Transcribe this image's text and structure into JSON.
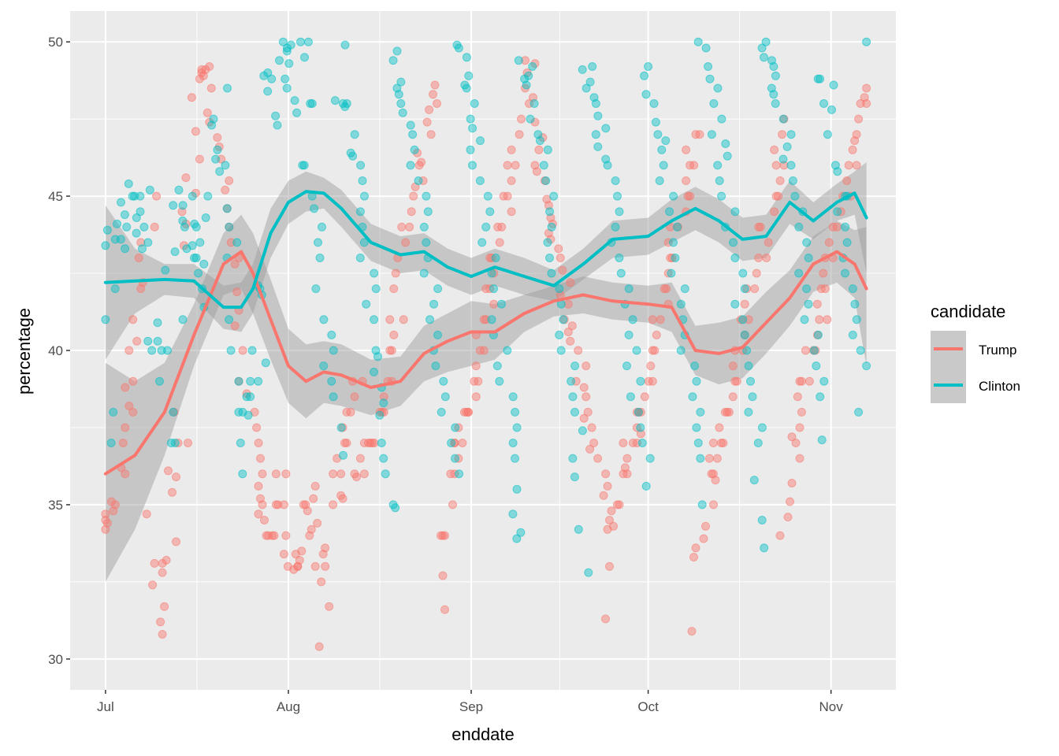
{
  "chart_data": {
    "type": "scatter",
    "xlabel": "enddate",
    "ylabel": "percentage",
    "x_ticks": [
      "Jul",
      "Aug",
      "Sep",
      "Oct",
      "Nov"
    ],
    "x_tick_dates": [
      "2016-07-01",
      "2016-08-01",
      "2016-09-01",
      "2016-10-01",
      "2016-11-01"
    ],
    "xlim": [
      "2016-06-25",
      "2016-11-12"
    ],
    "y_ticks": [
      30,
      35,
      40,
      45,
      50
    ],
    "ylim": [
      29,
      51
    ],
    "grid": true,
    "legend": {
      "title": "candidate",
      "position": "right"
    },
    "series": [
      {
        "name": "Trump",
        "color": "#F8766D",
        "smooth_x": [
          "2016-07-01",
          "2016-07-06",
          "2016-07-11",
          "2016-07-16",
          "2016-07-21",
          "2016-07-24",
          "2016-07-26",
          "2016-07-29",
          "2016-08-01",
          "2016-08-04",
          "2016-08-07",
          "2016-08-10",
          "2016-08-15",
          "2016-08-20",
          "2016-08-24",
          "2016-08-28",
          "2016-09-01",
          "2016-09-05",
          "2016-09-10",
          "2016-09-15",
          "2016-09-20",
          "2016-09-25",
          "2016-10-01",
          "2016-10-05",
          "2016-10-09",
          "2016-10-13",
          "2016-10-17",
          "2016-10-21",
          "2016-10-25",
          "2016-10-29",
          "2016-11-02",
          "2016-11-05",
          "2016-11-07"
        ],
        "smooth_y": [
          36.0,
          36.6,
          38.0,
          40.5,
          42.8,
          43.2,
          42.5,
          41.0,
          39.5,
          39.0,
          39.3,
          39.2,
          38.8,
          39.0,
          39.9,
          40.3,
          40.6,
          40.6,
          41.2,
          41.6,
          41.8,
          41.6,
          41.5,
          41.4,
          40.0,
          39.9,
          40.1,
          40.9,
          41.7,
          42.8,
          43.2,
          42.8,
          42.0
        ],
        "band_low": [
          32.5,
          34.2,
          36.6,
          39.5,
          41.8,
          42.0,
          41.2,
          39.7,
          38.3,
          37.8,
          38.3,
          38.2,
          37.9,
          38.2,
          39.0,
          39.3,
          39.5,
          39.7,
          40.6,
          41.1,
          41.2,
          41.0,
          40.9,
          40.6,
          39.2,
          38.9,
          39.1,
          39.9,
          40.8,
          41.9,
          42.2,
          41.7,
          39.5
        ],
        "band_high": [
          39.6,
          39.0,
          39.6,
          41.5,
          43.8,
          44.4,
          43.8,
          42.3,
          40.7,
          40.2,
          40.3,
          40.2,
          39.7,
          39.8,
          40.8,
          41.2,
          41.6,
          41.5,
          41.8,
          42.1,
          42.4,
          42.2,
          42.1,
          42.2,
          40.8,
          40.9,
          41.1,
          41.9,
          42.6,
          43.7,
          44.2,
          43.9,
          44.0
        ],
        "points_y": [
          34.2,
          34.4,
          34.5,
          34.7,
          34.8,
          35.0,
          35.1,
          36.0,
          36.2,
          37.0,
          37.5,
          38.0,
          38.2,
          38.8,
          39.0,
          40.0,
          40.3,
          41.0,
          42.0,
          42.2,
          43.0,
          43.5,
          44.0,
          45.0,
          34.7,
          33.1,
          32.8,
          32.4,
          31.2,
          30.8,
          31.7,
          33.2,
          33.1,
          33.8,
          35.4,
          36.1,
          35.9,
          37.0,
          38.0,
          37.0,
          43.4,
          44.1,
          44.5,
          45.1,
          45.6,
          46.2,
          47.1,
          48.2,
          48.8,
          49.1,
          49.2,
          49.1,
          49.0,
          48.9,
          48.5,
          47.7,
          47.4,
          46.9,
          46.6,
          46.2,
          45.5,
          45.2,
          44.6,
          44.0,
          43.5,
          43.0,
          42.8,
          41.9,
          41.3,
          40.8,
          40.0,
          39.0,
          38.6,
          38.0,
          37.5,
          37.0,
          36.5,
          36.0,
          35.6,
          35.2,
          35.0,
          34.7,
          34.0,
          34.0,
          34.5,
          34.0,
          34.0,
          35.0,
          35.0,
          36.0,
          36.0,
          35.0,
          34.0,
          33.0,
          33.4,
          33.0,
          32.9,
          33.5,
          33.0,
          33.2,
          33.4,
          34.0,
          34.2,
          34.8,
          35.0,
          35.0,
          35.2,
          35.6,
          34.4,
          33.0,
          33.0,
          31.7,
          30.4,
          32.5,
          33.4,
          33.6,
          35.0,
          35.3,
          35.2,
          36.0,
          36.0,
          36.5,
          37.0,
          37.0,
          37.5,
          38.0,
          38.0,
          38.5,
          39.0,
          39.0,
          36.0,
          35.9,
          36.0,
          36.5,
          37.0,
          37.0,
          37.0,
          37.0,
          37.0,
          38.0,
          38.0,
          38.0,
          38.5,
          39.0,
          39.0,
          40.0,
          40.0,
          40.5,
          41.0,
          41.0,
          42.0,
          42.5,
          43.0,
          43.5,
          44.0,
          44.0,
          44.5,
          45.0,
          45.3,
          45.5,
          46.0,
          46.1,
          46.4,
          47.0,
          47.4,
          47.8,
          48.0,
          48.3,
          48.6,
          32.7,
          31.6,
          34.0,
          34.0,
          34.0,
          35.0,
          36.0,
          36.0,
          36.5,
          37.0,
          37.0,
          37.5,
          37.0,
          38.0,
          38.0,
          38.0,
          38.0,
          38.5,
          39.0,
          39.0,
          39.5,
          40.0,
          40.0,
          40.5,
          41.0,
          41.0,
          41.5,
          42.0,
          42.0,
          42.5,
          43.0,
          43.0,
          43.5,
          44.0,
          44.0,
          44.5,
          45.0,
          45.0,
          45.5,
          46.0,
          46.0,
          46.5,
          47.0,
          47.5,
          48.0,
          48.5,
          49.0,
          49.3,
          49.4,
          48.2,
          47.4,
          46.9,
          46.5,
          46.0,
          45.8,
          45.5,
          44.9,
          44.7,
          44.3,
          44.1,
          43.8,
          43.6,
          43.3,
          43.0,
          42.6,
          42.2,
          41.8,
          41.5,
          41.0,
          40.8,
          40.6,
          40.3,
          40.0,
          39.5,
          39.0,
          38.8,
          38.5,
          38.0,
          37.8,
          37.5,
          37.0,
          36.8,
          36.5,
          36.0,
          35.6,
          35.3,
          34.8,
          34.3,
          33.0,
          31.3,
          34.2,
          34.5,
          35.0,
          35.0,
          36.0,
          36.0,
          36.2,
          36.5,
          37.0,
          37.0,
          37.0,
          37.3,
          37.5,
          38.0,
          38.0,
          38.0,
          38.5,
          39.0,
          39.0,
          39.5,
          40.0,
          40.0,
          40.5,
          41.0,
          41.0,
          41.5,
          42.0,
          42.0,
          42.5,
          43.0,
          43.0,
          43.5,
          44.0,
          44.0,
          44.5,
          45.0,
          45.0,
          45.5,
          46.0,
          46.0,
          46.5,
          47.0,
          47.0,
          30.9,
          33.3,
          33.6,
          33.9,
          34.3,
          35.0,
          35.8,
          36.0,
          36.0,
          36.5,
          36.5,
          37.0,
          37.0,
          37.0,
          37.5,
          38.0,
          38.0,
          38.0,
          38.5,
          39.0,
          39.0,
          39.5,
          40.0,
          40.0,
          40.5,
          41.0,
          41.0,
          41.5,
          42.0,
          42.0,
          42.5,
          43.0,
          43.0,
          43.5,
          44.0,
          44.0,
          44.5,
          45.0,
          45.0,
          45.5,
          46.0,
          46.0,
          46.5,
          47.0,
          47.5,
          34.0,
          34.6,
          35.1,
          35.7,
          36.5,
          37.0,
          37.2,
          37.5,
          38.0,
          38.5,
          39.0,
          39.0,
          39.0,
          40.0,
          40.0,
          40.0,
          40.5,
          41.0,
          41.0,
          41.5,
          42.0,
          42.0,
          42.5,
          43.0,
          43.0,
          43.5,
          44.0,
          44.0,
          44.5,
          45.0,
          45.0,
          45.5,
          46.0,
          46.0,
          46.5,
          46.8,
          47.0,
          47.5,
          48.0,
          48.0,
          48.2,
          48.5
        ]
      },
      {
        "name": "Clinton",
        "color": "#00BFC4",
        "smooth_x": [
          "2016-07-01",
          "2016-07-06",
          "2016-07-11",
          "2016-07-16",
          "2016-07-21",
          "2016-07-24",
          "2016-07-26",
          "2016-07-29",
          "2016-08-01",
          "2016-08-04",
          "2016-08-07",
          "2016-08-10",
          "2016-08-15",
          "2016-08-20",
          "2016-08-24",
          "2016-08-28",
          "2016-09-01",
          "2016-09-05",
          "2016-09-10",
          "2016-09-15",
          "2016-09-20",
          "2016-09-25",
          "2016-10-01",
          "2016-10-05",
          "2016-10-09",
          "2016-10-13",
          "2016-10-17",
          "2016-10-21",
          "2016-10-25",
          "2016-10-29",
          "2016-11-02",
          "2016-11-05",
          "2016-11-07"
        ],
        "smooth_y": [
          42.2,
          42.25,
          42.3,
          42.25,
          41.4,
          41.4,
          42.0,
          43.8,
          44.8,
          45.15,
          45.1,
          44.6,
          43.5,
          43.1,
          43.2,
          42.7,
          42.4,
          42.7,
          42.4,
          42.1,
          42.8,
          43.6,
          43.7,
          44.2,
          44.6,
          44.2,
          43.6,
          43.7,
          44.8,
          44.2,
          44.8,
          45.1,
          44.3
        ],
        "band_low": [
          39.7,
          41.2,
          41.8,
          41.7,
          40.7,
          40.6,
          41.2,
          43.0,
          44.1,
          44.5,
          44.6,
          44.0,
          42.9,
          42.5,
          42.6,
          42.1,
          41.8,
          42.1,
          41.8,
          41.6,
          42.3,
          43.0,
          43.1,
          43.5,
          43.9,
          43.5,
          42.9,
          43.0,
          44.1,
          43.6,
          44.2,
          44.4,
          42.5
        ],
        "band_high": [
          44.7,
          43.3,
          42.8,
          42.8,
          42.1,
          42.2,
          42.8,
          44.6,
          45.5,
          45.8,
          45.6,
          45.2,
          44.1,
          43.7,
          43.8,
          43.3,
          43.0,
          43.3,
          43.0,
          42.6,
          43.3,
          44.2,
          44.3,
          44.9,
          45.3,
          44.9,
          44.3,
          44.4,
          45.5,
          44.8,
          45.4,
          45.8,
          46.1
        ],
        "points_y": [
          43.4,
          43.9,
          43.6,
          41.0,
          38.0,
          42.0,
          37.0,
          43.3,
          44.8,
          44.1,
          44.4,
          43.6,
          45.4,
          44.3,
          44.0,
          45.0,
          43.8,
          45.0,
          44.5,
          43.3,
          44.0,
          45.0,
          43.5,
          45.2,
          40.0,
          40.3,
          40.0,
          40.3,
          39.0,
          40.0,
          40.9,
          37.0,
          38.0,
          37.0,
          42.6,
          44.7,
          43.2,
          44.7,
          45.2,
          43.3,
          41.0,
          44.0,
          45.0,
          44.2,
          44.0,
          43.4,
          44.1,
          43.0,
          42.5,
          43.0,
          42.0,
          41.4,
          43.5,
          45.0,
          42.8,
          44.3,
          45.8,
          46.2,
          47.3,
          47.5,
          48.5,
          46.5,
          46.0,
          44.6,
          44.0,
          43.5,
          43.0,
          41.0,
          40.0,
          39.0,
          38.5,
          38.0,
          38.0,
          37.0,
          36.0,
          39.0,
          39.0,
          37.9,
          38.5,
          40.0,
          42.0,
          41.8,
          42.1,
          39.6,
          49.0,
          48.9,
          48.8,
          48.4,
          47.6,
          47.3,
          49.4,
          49.8,
          50.0,
          49.9,
          49.7,
          49.3,
          48.8,
          48.5,
          48.1,
          47.7,
          49.5,
          50.0,
          50.0,
          48.0,
          48.0,
          46.0,
          46.0,
          45.0,
          44.6,
          44.0,
          43.5,
          43.0,
          42.0,
          41.0,
          40.5,
          40.0,
          39.5,
          39.0,
          38.5,
          37.5,
          36.6,
          49.9,
          48.1,
          48.0,
          47.9,
          48.0,
          47.0,
          46.4,
          46.3,
          46.0,
          45.5,
          45.0,
          44.5,
          44.0,
          43.5,
          43.0,
          42.5,
          42.0,
          41.5,
          41.0,
          40.0,
          39.8,
          39.3,
          38.8,
          38.3,
          37.9,
          37.0,
          36.5,
          36.0,
          35.0,
          34.9,
          49.7,
          49.4,
          48.7,
          48.5,
          48.3,
          48.0,
          47.7,
          47.3,
          47.0,
          46.5,
          46.0,
          45.5,
          45.0,
          44.5,
          44.0,
          43.5,
          43.0,
          42.5,
          42.0,
          41.5,
          41.0,
          40.5,
          40.0,
          39.5,
          39.0,
          38.5,
          38.0,
          37.5,
          37.0,
          36.0,
          36.5,
          49.9,
          49.8,
          49.5,
          48.9,
          48.6,
          48.5,
          48.0,
          47.5,
          47.2,
          46.8,
          46.5,
          46.0,
          45.5,
          45.0,
          44.5,
          44.0,
          43.5,
          43.0,
          42.5,
          42.0,
          41.5,
          41.0,
          40.5,
          40.0,
          39.5,
          39.0,
          38.5,
          38.0,
          37.5,
          37.0,
          36.5,
          35.5,
          34.7,
          34.1,
          33.9,
          49.4,
          49.2,
          48.9,
          48.8,
          48.6,
          48.0,
          47.5,
          47.0,
          46.8,
          46.5,
          46.0,
          45.5,
          45.0,
          44.5,
          44.0,
          43.5,
          43.0,
          42.5,
          42.0,
          41.5,
          41.0,
          40.5,
          40.0,
          39.5,
          39.0,
          38.5,
          38.0,
          37.4,
          36.5,
          35.9,
          32.8,
          34.2,
          49.2,
          49.1,
          48.7,
          48.5,
          48.2,
          48.0,
          47.6,
          47.2,
          47.0,
          46.6,
          46.2,
          46.0,
          45.5,
          45.0,
          44.5,
          44.0,
          43.5,
          43.0,
          42.5,
          42.0,
          41.5,
          41.0,
          40.5,
          40.0,
          39.5,
          39.0,
          38.5,
          38.0,
          37.5,
          37.0,
          36.5,
          35.6,
          49.2,
          48.9,
          48.3,
          48.0,
          47.4,
          47.0,
          46.8,
          46.5,
          46.0,
          45.5,
          45.0,
          44.5,
          44.0,
          43.5,
          43.0,
          42.5,
          42.0,
          41.5,
          41.0,
          40.5,
          40.0,
          39.5,
          39.0,
          38.5,
          38.0,
          37.5,
          37.0,
          36.5,
          35.0,
          50.0,
          49.8,
          49.2,
          48.8,
          48.5,
          48.0,
          47.5,
          47.0,
          46.7,
          46.3,
          46.0,
          45.5,
          45.0,
          44.5,
          44.0,
          43.5,
          43.0,
          42.5,
          42.0,
          41.5,
          41.0,
          40.5,
          40.0,
          39.5,
          39.0,
          38.5,
          38.0,
          37.5,
          37.0,
          35.8,
          34.5,
          33.6,
          50.0,
          49.8,
          49.5,
          49.4,
          49.2,
          48.9,
          48.5,
          48.3,
          48.0,
          47.5,
          47.0,
          46.6,
          46.2,
          46.0,
          45.5,
          45.0,
          44.5,
          44.0,
          43.5,
          43.0,
          42.5,
          42.0,
          41.5,
          41.0,
          40.5,
          40.0,
          39.5,
          39.0,
          38.5,
          37.1,
          48.8,
          48.8,
          48.6,
          48.0,
          47.8,
          47.0,
          46.0,
          45.8,
          45.0,
          45.0,
          44.5,
          44.0,
          43.5,
          43.0,
          42.5,
          42.0,
          41.5,
          41.0,
          40.5,
          40.0,
          39.5,
          38.0,
          50.0
        ]
      }
    ]
  }
}
